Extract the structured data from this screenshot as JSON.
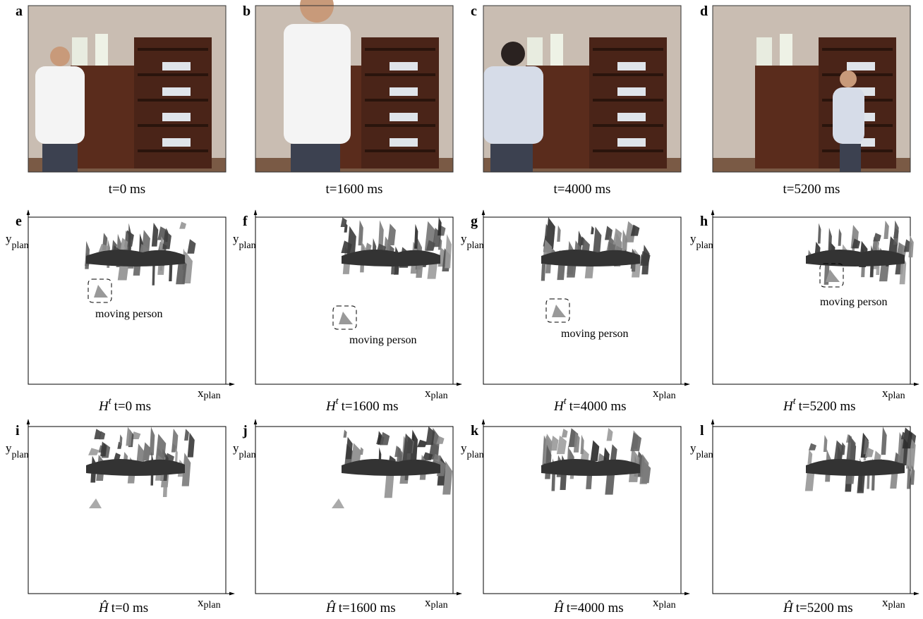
{
  "photos": [
    {
      "letter": "a",
      "caption": "t=0 ms"
    },
    {
      "letter": "b",
      "caption": "t=1600 ms"
    },
    {
      "letter": "c",
      "caption": "t=4000 ms"
    },
    {
      "letter": "d",
      "caption": "t=5200 ms"
    }
  ],
  "axes": {
    "x": "x",
    "y": "y",
    "sub": "plan"
  },
  "maps_current": {
    "symbol": "H",
    "symbol_sup": "t",
    "panels": [
      {
        "letter": "e",
        "time": "t=0 ms",
        "annotation": "moving person"
      },
      {
        "letter": "f",
        "time": "t=1600 ms",
        "annotation": "moving person"
      },
      {
        "letter": "g",
        "time": "t=4000 ms",
        "annotation": "moving person"
      },
      {
        "letter": "h",
        "time": "t=5200 ms",
        "annotation": "moving person"
      }
    ]
  },
  "maps_filtered": {
    "symbol": "Ĥ",
    "panels": [
      {
        "letter": "i",
        "time": "t=0 ms"
      },
      {
        "letter": "j",
        "time": "t=1600 ms"
      },
      {
        "letter": "k",
        "time": "t=4000 ms"
      },
      {
        "letter": "l",
        "time": "t=5200 ms"
      }
    ]
  }
}
